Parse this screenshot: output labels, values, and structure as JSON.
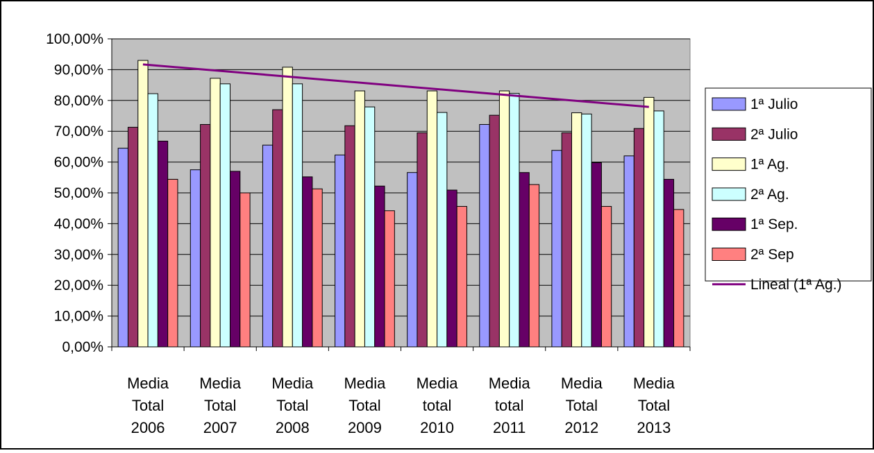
{
  "chart_data": {
    "type": "bar",
    "title": "",
    "xlabel": "",
    "ylabel": "",
    "categories": [
      [
        "Media",
        "Total",
        "2006"
      ],
      [
        "Media",
        "Total",
        "2007"
      ],
      [
        "Media",
        "Total",
        "2008"
      ],
      [
        "Media",
        "Total",
        "2009"
      ],
      [
        "Media",
        "total",
        "2010"
      ],
      [
        "Media",
        "total",
        "2011"
      ],
      [
        "Media",
        "Total",
        "2012"
      ],
      [
        "Media",
        "Total",
        "2013"
      ]
    ],
    "y_ticks": [
      "0,00%",
      "10,00%",
      "20,00%",
      "30,00%",
      "40,00%",
      "50,00%",
      "60,00%",
      "70,00%",
      "80,00%",
      "90,00%",
      "100,00%"
    ],
    "ylim": [
      0,
      100
    ],
    "grid": true,
    "legend_position": "right",
    "series": [
      {
        "name": "1ª Julio",
        "color": "#9999FF",
        "values": [
          64.5,
          57.5,
          65.5,
          62.3,
          56.6,
          72.2,
          63.8,
          62.0
        ]
      },
      {
        "name": "2ª Julio",
        "color": "#993366",
        "values": [
          71.3,
          72.2,
          77.0,
          71.8,
          69.5,
          75.2,
          69.5,
          70.9
        ]
      },
      {
        "name": "1ª Ag.",
        "color": "#FFFFCC",
        "values": [
          93.0,
          87.2,
          90.8,
          83.1,
          83.1,
          83.1,
          76.0,
          81.0
        ]
      },
      {
        "name": "2ª Ag.",
        "color": "#CCFFFF",
        "values": [
          82.2,
          85.4,
          85.4,
          77.9,
          76.1,
          82.3,
          75.6,
          76.6
        ]
      },
      {
        "name": "1ª Sep.",
        "color": "#660066",
        "values": [
          66.8,
          57.0,
          55.2,
          52.2,
          50.9,
          56.6,
          59.8,
          54.4
        ]
      },
      {
        "name": "2ª Sep",
        "color": "#FF8080",
        "values": [
          54.4,
          50.0,
          51.3,
          44.2,
          45.6,
          52.7,
          45.6,
          44.6
        ]
      }
    ],
    "trendline": {
      "name": "Lineal (1ª Ag.)",
      "color": "#800080",
      "start": 91.7,
      "end": 77.9
    },
    "plot_background": "#C0C0C0"
  }
}
